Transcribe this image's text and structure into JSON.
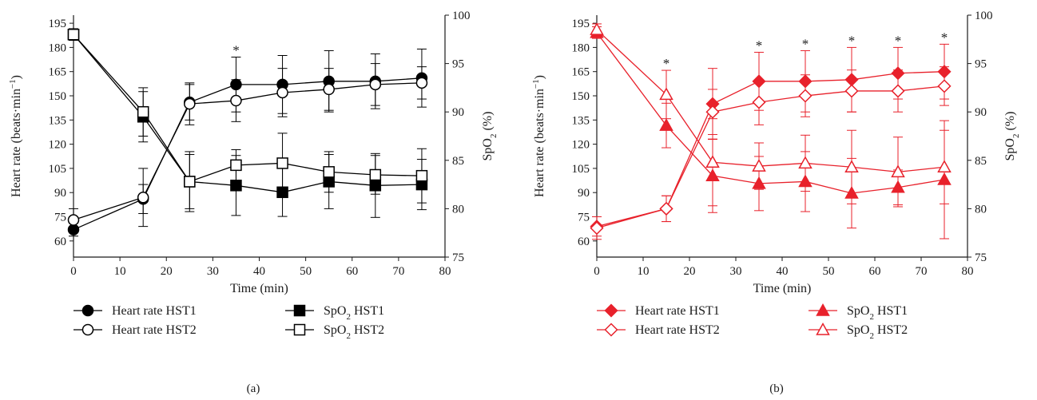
{
  "chart_data": [
    {
      "type": "line",
      "color": "#000000",
      "panel_label": "(a)",
      "xlabel": "Time (min)",
      "ylabel_left": "Heart rate (beats·min",
      "ylabel_left_sup": "−1",
      "ylabel_left_close": ")",
      "ylabel_right_prefix": "SpO",
      "ylabel_right_sub": "2",
      "ylabel_right_suffix": " (%)",
      "xlim": [
        0,
        80
      ],
      "xticks": [
        "0",
        "10",
        "20",
        "30",
        "40",
        "50",
        "60",
        "70",
        "80"
      ],
      "ylim_left": [
        50,
        200
      ],
      "yticks_left": [
        "60",
        "75",
        "90",
        "105",
        "120",
        "135",
        "150",
        "165",
        "180",
        "195"
      ],
      "ylim_right": [
        75,
        100
      ],
      "yticks_right": [
        "75",
        "80",
        "85",
        "90",
        "95",
        "100"
      ],
      "significance_x": [
        35
      ],
      "significance_symbol": "*",
      "legend": [
        {
          "marker": "circle-filled",
          "text": "Heart rate HST1"
        },
        {
          "marker": "circle-open",
          "text": "Heart rate HST2"
        },
        {
          "marker": "square-filled",
          "text_prefix": "SpO",
          "text_sub": "2",
          "text_suffix": " HST1"
        },
        {
          "marker": "square-open",
          "text_prefix": "SpO",
          "text_sub": "2",
          "text_suffix": " HST2"
        }
      ],
      "series": [
        {
          "name": "Heart rate HST1",
          "axis": "left",
          "marker": "circle",
          "filled": true,
          "x": [
            0,
            15,
            25,
            35,
            45,
            55,
            65,
            75
          ],
          "y": [
            67,
            86,
            146,
            157,
            157,
            159,
            159,
            161
          ],
          "err": [
            4,
            9,
            11,
            17,
            18,
            19,
            17,
            18
          ]
        },
        {
          "name": "Heart rate HST2",
          "axis": "left",
          "marker": "circle",
          "filled": false,
          "x": [
            0,
            15,
            25,
            35,
            45,
            55,
            65,
            75
          ],
          "y": [
            73,
            87,
            145,
            147,
            152,
            154,
            157,
            158
          ],
          "err": [
            7,
            18,
            13,
            13,
            15,
            13,
            13,
            10
          ]
        },
        {
          "name": "SpO2 HST1",
          "axis": "right",
          "marker": "square",
          "filled": true,
          "x": [
            0,
            15,
            25,
            35,
            45,
            55,
            65,
            75
          ],
          "y": [
            98,
            89.5,
            82.8,
            82.4,
            81.7,
            82.8,
            82.4,
            82.5
          ],
          "err": [
            0.6,
            2.6,
            3.1,
            3.1,
            2.5,
            2.8,
            3.3,
            2.6
          ]
        },
        {
          "name": "SpO2 HST2",
          "axis": "right",
          "marker": "square",
          "filled": false,
          "x": [
            0,
            15,
            25,
            35,
            45,
            55,
            65,
            75
          ],
          "y": [
            98,
            90,
            82.8,
            84.5,
            84.7,
            83.8,
            83.5,
            83.4
          ],
          "err": [
            0.6,
            2.5,
            2.8,
            1.6,
            3.1,
            2.1,
            2,
            2.8
          ]
        }
      ]
    },
    {
      "type": "line",
      "color": "#e8212b",
      "panel_label": "(b)",
      "xlabel": "Time (min)",
      "ylabel_left": "Heart rate (beats·min",
      "ylabel_left_sup": "−1",
      "ylabel_left_close": ")",
      "ylabel_right_prefix": "SpO",
      "ylabel_right_sub": "2",
      "ylabel_right_suffix": " (%)",
      "xlim": [
        0,
        80
      ],
      "xticks": [
        "0",
        "10",
        "20",
        "30",
        "40",
        "50",
        "60",
        "70",
        "80"
      ],
      "ylim_left": [
        50,
        200
      ],
      "yticks_left": [
        "60",
        "75",
        "90",
        "105",
        "120",
        "135",
        "150",
        "165",
        "180",
        "195"
      ],
      "ylim_right": [
        75,
        100
      ],
      "yticks_right": [
        "75",
        "80",
        "85",
        "90",
        "95",
        "100"
      ],
      "significance_x": [
        15,
        35,
        45,
        55,
        65,
        75
      ],
      "significance_symbol": "*",
      "legend": [
        {
          "marker": "diamond-filled",
          "text": "Heart rate HST1"
        },
        {
          "marker": "diamond-open",
          "text": "Heart rate HST2"
        },
        {
          "marker": "triangle-filled",
          "text_prefix": "SpO",
          "text_sub": "2",
          "text_suffix": " HST1"
        },
        {
          "marker": "triangle-open",
          "text_prefix": "SpO",
          "text_sub": "2",
          "text_suffix": " HST2"
        }
      ],
      "series": [
        {
          "name": "Heart rate HST1",
          "axis": "left",
          "marker": "diamond",
          "filled": true,
          "x": [
            0,
            15,
            25,
            35,
            45,
            55,
            65,
            75
          ],
          "y": [
            69,
            80,
            145,
            159,
            159,
            160,
            164,
            165
          ],
          "err": [
            6,
            8,
            22,
            18,
            19,
            20,
            16,
            17
          ]
        },
        {
          "name": "Heart rate HST2",
          "axis": "left",
          "marker": "diamond",
          "filled": false,
          "x": [
            0,
            15,
            25,
            35,
            45,
            55,
            65,
            75
          ],
          "y": [
            68,
            80,
            140,
            146,
            150,
            153,
            153,
            156
          ],
          "err": [
            7,
            8,
            14,
            14,
            13,
            13,
            13,
            12
          ]
        },
        {
          "name": "SpO2 HST1",
          "axis": "right",
          "marker": "triangle",
          "filled": true,
          "x": [
            0,
            15,
            25,
            35,
            45,
            55,
            65,
            75
          ],
          "y": [
            98.2,
            88.6,
            83.4,
            82.6,
            82.8,
            81.6,
            82.2,
            83
          ],
          "err": [
            0.6,
            2.3,
            3.8,
            2.8,
            3.1,
            3.6,
            1.8,
            6.1
          ]
        },
        {
          "name": "SpO2 HST2",
          "axis": "right",
          "marker": "triangle",
          "filled": false,
          "x": [
            0,
            15,
            25,
            35,
            45,
            55,
            65,
            75
          ],
          "y": [
            98.5,
            91.8,
            84.8,
            84.4,
            84.7,
            84.3,
            83.8,
            84.3
          ],
          "err": [
            0.6,
            2.5,
            4.5,
            2.4,
            2.9,
            3.8,
            3.6,
            3.8
          ]
        }
      ]
    }
  ]
}
